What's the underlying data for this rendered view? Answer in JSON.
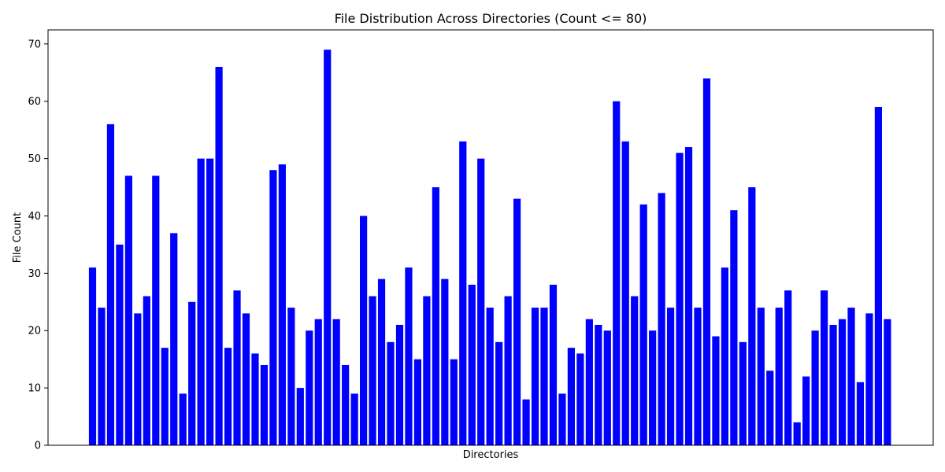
{
  "chart_data": {
    "type": "bar",
    "title": "File Distribution Across Directories (Count <= 80)",
    "xlabel": "Directories",
    "ylabel": "File Count",
    "ylim": [
      0,
      72.45
    ],
    "yticks": [
      0,
      10,
      20,
      30,
      40,
      50,
      60,
      70
    ],
    "grid": false,
    "bar_color": "#0000ff",
    "values": [
      31,
      24,
      56,
      35,
      47,
      23,
      26,
      47,
      17,
      37,
      9,
      25,
      50,
      50,
      66,
      17,
      27,
      23,
      16,
      14,
      48,
      49,
      24,
      10,
      20,
      22,
      69,
      22,
      14,
      9,
      40,
      26,
      29,
      18,
      21,
      31,
      15,
      26,
      45,
      29,
      15,
      53,
      28,
      50,
      24,
      18,
      26,
      43,
      8,
      24,
      24,
      28,
      9,
      17,
      16,
      22,
      21,
      20,
      60,
      53,
      26,
      42,
      20,
      44,
      24,
      51,
      52,
      24,
      64,
      19,
      31,
      41,
      18,
      45,
      24,
      13,
      24,
      27,
      4,
      12,
      20,
      27,
      21,
      22,
      24,
      11,
      23,
      59,
      22
    ]
  }
}
